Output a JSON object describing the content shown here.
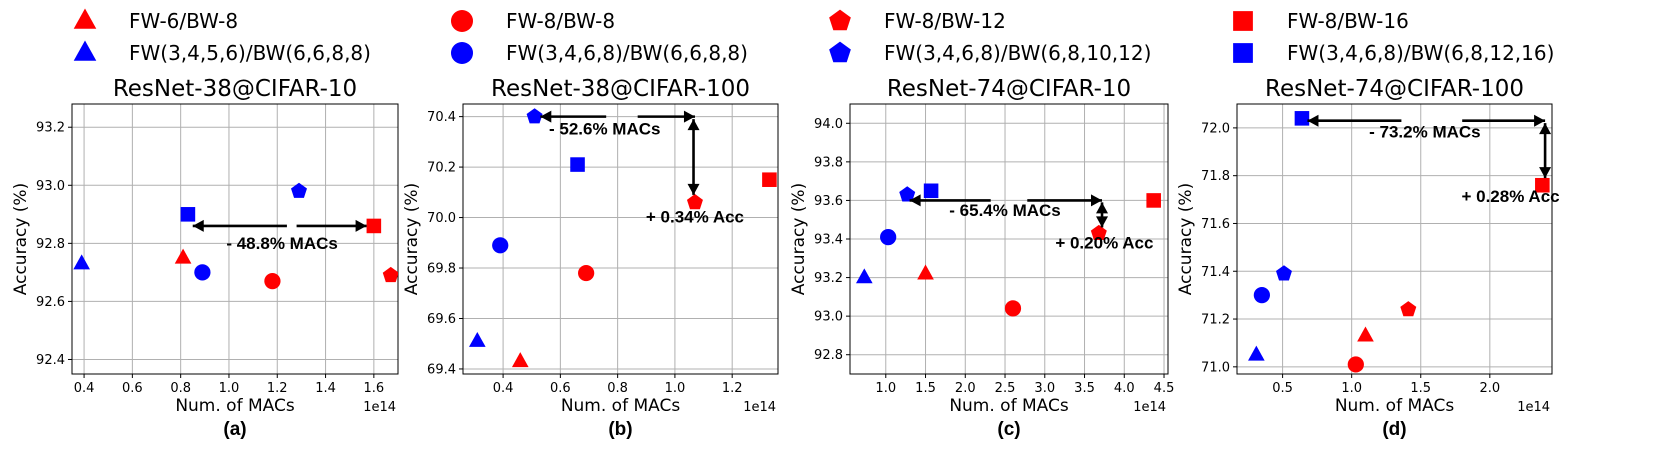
{
  "colors": {
    "low_precision": "#ff0000",
    "ours": "#0000ff",
    "grid": "#b0b0b0"
  },
  "legend": [
    {
      "label": "FW-6/BW-8",
      "marker": "triangle",
      "color": "#ff0000"
    },
    {
      "label": "FW(3,4,5,6)/BW(6,6,8,8)",
      "marker": "triangle",
      "color": "#0000ff"
    },
    {
      "label": "FW-8/BW-8",
      "marker": "circle",
      "color": "#ff0000"
    },
    {
      "label": "FW(3,4,6,8)/BW(6,6,8,8)",
      "marker": "circle",
      "color": "#0000ff"
    },
    {
      "label": "FW-8/BW-12",
      "marker": "pentagon",
      "color": "#ff0000"
    },
    {
      "label": "FW(3,4,6,8)/BW(6,8,10,12)",
      "marker": "pentagon",
      "color": "#0000ff"
    },
    {
      "label": "FW-8/BW-16",
      "marker": "square",
      "color": "#ff0000"
    },
    {
      "label": "FW(3,4,6,8)/BW(6,8,12,16)",
      "marker": "square",
      "color": "#0000ff"
    }
  ],
  "chart_data": [
    {
      "type": "scatter",
      "panel_label": "(a)",
      "title": "ResNet-38@CIFAR-10",
      "xlabel": "Num. of MACs",
      "ylabel": "Accuracy (%)",
      "x_multiplier": "1e14",
      "xlim": [
        0.35,
        1.7
      ],
      "ylim": [
        92.35,
        93.28
      ],
      "xticks": [
        0.4,
        0.6,
        0.8,
        1.0,
        1.2,
        1.4,
        1.6
      ],
      "xtick_labels": [
        "0.4",
        "0.6",
        "0.8",
        "1.0",
        "1.2",
        "1.4",
        "1.6"
      ],
      "yticks": [
        92.4,
        92.6,
        92.8,
        93.0,
        93.2
      ],
      "ytick_labels": [
        "92.4",
        "92.6",
        "92.8",
        "93.0",
        "93.2"
      ],
      "points": [
        {
          "marker": "triangle",
          "color": "red",
          "x": 0.81,
          "y": 92.75
        },
        {
          "marker": "triangle",
          "color": "blue",
          "x": 0.39,
          "y": 92.73
        },
        {
          "marker": "circle",
          "color": "red",
          "x": 1.18,
          "y": 92.67
        },
        {
          "marker": "circle",
          "color": "blue",
          "x": 0.89,
          "y": 92.7
        },
        {
          "marker": "pentagon",
          "color": "red",
          "x": 1.67,
          "y": 92.69
        },
        {
          "marker": "pentagon",
          "color": "blue",
          "x": 1.29,
          "y": 92.98
        },
        {
          "marker": "square",
          "color": "red",
          "x": 1.6,
          "y": 92.86
        },
        {
          "marker": "square",
          "color": "blue",
          "x": 0.83,
          "y": 92.9
        }
      ],
      "annotations": [
        {
          "text": "- 48.8%  MACs",
          "x": 1.22,
          "y": 92.78,
          "anchor": "middle"
        }
      ],
      "arrows": [
        {
          "x1": 1.24,
          "y1": 92.86,
          "x2": 0.85,
          "y2": 92.86,
          "head_start": false
        },
        {
          "x1": 1.28,
          "y1": 92.86,
          "x2": 1.57,
          "y2": 92.86,
          "head_start": false
        }
      ]
    },
    {
      "type": "scatter",
      "panel_label": "(b)",
      "title": "ResNet-38@CIFAR-100",
      "xlabel": "Num. of MACs",
      "ylabel": "Accuracy (%)",
      "x_multiplier": "1e14",
      "xlim": [
        0.26,
        1.36
      ],
      "ylim": [
        69.38,
        70.45
      ],
      "xticks": [
        0.4,
        0.6,
        0.8,
        1.0,
        1.2
      ],
      "xtick_labels": [
        "0.4",
        "0.6",
        "0.8",
        "1.0",
        "1.2"
      ],
      "yticks": [
        69.4,
        69.6,
        69.8,
        70.0,
        70.2,
        70.4
      ],
      "ytick_labels": [
        "69.4",
        "69.6",
        "69.8",
        "70.0",
        "70.2",
        "70.4"
      ],
      "points": [
        {
          "marker": "triangle",
          "color": "red",
          "x": 0.46,
          "y": 69.43
        },
        {
          "marker": "triangle",
          "color": "blue",
          "x": 0.31,
          "y": 69.51
        },
        {
          "marker": "circle",
          "color": "red",
          "x": 0.69,
          "y": 69.78
        },
        {
          "marker": "circle",
          "color": "blue",
          "x": 0.39,
          "y": 69.89
        },
        {
          "marker": "pentagon",
          "color": "red",
          "x": 1.07,
          "y": 70.06
        },
        {
          "marker": "pentagon",
          "color": "blue",
          "x": 0.51,
          "y": 70.4
        },
        {
          "marker": "square",
          "color": "red",
          "x": 1.33,
          "y": 70.15
        },
        {
          "marker": "square",
          "color": "blue",
          "x": 0.66,
          "y": 70.21
        }
      ],
      "annotations": [
        {
          "text": "- 52.6% MACs",
          "x": 0.755,
          "y": 70.33,
          "anchor": "middle"
        },
        {
          "text": "+ 0.34% Acc",
          "x": 1.07,
          "y": 69.98,
          "anchor": "middle"
        }
      ],
      "arrows": [
        {
          "x1": 0.76,
          "y1": 70.4,
          "x2": 0.53,
          "y2": 70.4,
          "head_start": false
        },
        {
          "x1": 0.87,
          "y1": 70.4,
          "x2": 1.07,
          "y2": 70.4,
          "head_start": false
        },
        {
          "x1": 1.065,
          "y1": 70.39,
          "x2": 1.065,
          "y2": 70.09,
          "head_start": true
        }
      ]
    },
    {
      "type": "scatter",
      "panel_label": "(c)",
      "title": "ResNet-74@CIFAR-10",
      "xlabel": "Num. of MACs",
      "ylabel": "Accuracy (%)",
      "x_multiplier": "1e14",
      "xlim": [
        0.55,
        4.55
      ],
      "ylim": [
        92.7,
        94.1
      ],
      "xticks": [
        1.0,
        1.5,
        2.0,
        2.5,
        3.0,
        3.5,
        4.0,
        4.5
      ],
      "xtick_labels": [
        "1.0",
        "1.5",
        "2.0",
        "2.5",
        "3.0",
        "3.5",
        "4.0",
        "4.5"
      ],
      "yticks": [
        92.8,
        93.0,
        93.2,
        93.4,
        93.6,
        93.8,
        94.0
      ],
      "ytick_labels": [
        "92.8",
        "93.0",
        "93.2",
        "93.4",
        "93.6",
        "93.8",
        "94.0"
      ],
      "points": [
        {
          "marker": "triangle",
          "color": "red",
          "x": 1.5,
          "y": 93.22
        },
        {
          "marker": "triangle",
          "color": "blue",
          "x": 0.73,
          "y": 93.2
        },
        {
          "marker": "circle",
          "color": "red",
          "x": 2.6,
          "y": 93.04
        },
        {
          "marker": "circle",
          "color": "blue",
          "x": 1.03,
          "y": 93.41
        },
        {
          "marker": "pentagon",
          "color": "red",
          "x": 3.68,
          "y": 93.43
        },
        {
          "marker": "pentagon",
          "color": "blue",
          "x": 1.27,
          "y": 93.63
        },
        {
          "marker": "square",
          "color": "red",
          "x": 4.37,
          "y": 93.6
        },
        {
          "marker": "square",
          "color": "blue",
          "x": 1.57,
          "y": 93.65
        }
      ],
      "annotations": [
        {
          "text": "- 65.4% MACs",
          "x": 2.5,
          "y": 93.52,
          "anchor": "middle"
        },
        {
          "text": "+ 0.20% Acc",
          "x": 3.75,
          "y": 93.35,
          "anchor": "middle"
        }
      ],
      "arrows": [
        {
          "x1": 2.32,
          "y1": 93.6,
          "x2": 1.3,
          "y2": 93.6,
          "head_start": false
        },
        {
          "x1": 2.78,
          "y1": 93.6,
          "x2": 3.72,
          "y2": 93.6,
          "head_start": false
        },
        {
          "x1": 3.72,
          "y1": 93.59,
          "x2": 3.72,
          "y2": 93.46,
          "head_start": true
        }
      ]
    },
    {
      "type": "scatter",
      "panel_label": "(d)",
      "title": "ResNet-74@CIFAR-100",
      "xlabel": "Num. of MACs",
      "ylabel": "Accuracy (%)",
      "x_multiplier": "1e14",
      "xlim": [
        0.17,
        2.45
      ],
      "ylim": [
        70.97,
        72.1
      ],
      "xticks": [
        0.5,
        1.0,
        1.5,
        2.0
      ],
      "xtick_labels": [
        "0.5",
        "1.0",
        "1.5",
        "2.0"
      ],
      "yticks": [
        71.0,
        71.2,
        71.4,
        71.6,
        71.8,
        72.0
      ],
      "ytick_labels": [
        "71.0",
        "71.2",
        "71.4",
        "71.6",
        "71.8",
        "72.0"
      ],
      "points": [
        {
          "marker": "triangle",
          "color": "red",
          "x": 1.1,
          "y": 71.13
        },
        {
          "marker": "triangle",
          "color": "blue",
          "x": 0.31,
          "y": 71.05
        },
        {
          "marker": "circle",
          "color": "red",
          "x": 1.03,
          "y": 71.01
        },
        {
          "marker": "circle",
          "color": "blue",
          "x": 0.35,
          "y": 71.3
        },
        {
          "marker": "pentagon",
          "color": "red",
          "x": 1.41,
          "y": 71.24
        },
        {
          "marker": "pentagon",
          "color": "blue",
          "x": 0.51,
          "y": 71.39
        },
        {
          "marker": "square",
          "color": "red",
          "x": 2.38,
          "y": 71.76
        },
        {
          "marker": "square",
          "color": "blue",
          "x": 0.64,
          "y": 72.04
        }
      ],
      "annotations": [
        {
          "text": "- 73.2% MACs",
          "x": 1.53,
          "y": 71.96,
          "anchor": "middle"
        },
        {
          "text": "+ 0.28% Acc",
          "x": 2.15,
          "y": 71.69,
          "anchor": "middle"
        }
      ],
      "arrows": [
        {
          "x1": 1.36,
          "y1": 72.03,
          "x2": 0.68,
          "y2": 72.03,
          "head_start": false
        },
        {
          "x1": 1.8,
          "y1": 72.03,
          "x2": 2.4,
          "y2": 72.03,
          "head_start": false
        },
        {
          "x1": 2.4,
          "y1": 72.02,
          "x2": 2.4,
          "y2": 71.79,
          "head_start": true
        }
      ]
    }
  ]
}
